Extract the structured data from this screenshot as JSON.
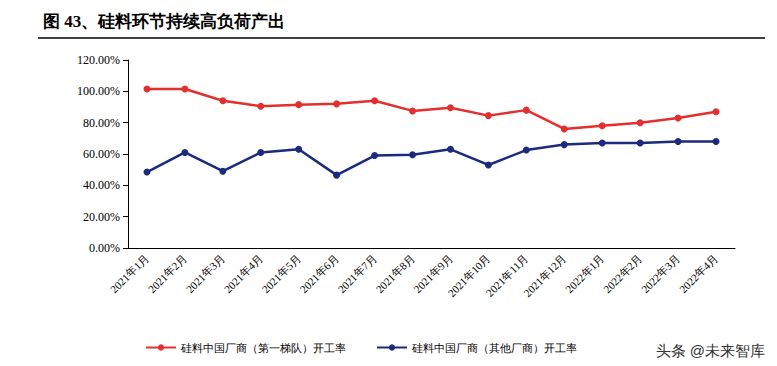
{
  "chart_data": {
    "type": "line",
    "title": "图 43、硅料环节持续高负荷产出",
    "categories": [
      "2021年1月",
      "2021年2月",
      "2021年3月",
      "2021年4月",
      "2021年5月",
      "2021年6月",
      "2021年7月",
      "2021年8月",
      "2021年9月",
      "2021年10月",
      "2021年11月",
      "2021年12月",
      "2022年1月",
      "2022年2月",
      "2022年3月",
      "2022年4月"
    ],
    "series": [
      {
        "name": "硅料中国厂商（第一梯队）开工率",
        "color": "#e3302f",
        "marker": "circle",
        "values": [
          101.5,
          101.5,
          94,
          90.5,
          91.5,
          92,
          94,
          87.5,
          89.5,
          84.5,
          88,
          76,
          78,
          80,
          83,
          87
        ]
      },
      {
        "name": "硅料中国厂商（其他厂商）开工率",
        "color": "#1b2a7e",
        "marker": "circle",
        "values": [
          48.5,
          61,
          49,
          61,
          63,
          46.5,
          59,
          59.5,
          63,
          53,
          62.5,
          66,
          67,
          67,
          68,
          68
        ]
      }
    ],
    "ylim": [
      0,
      120
    ],
    "yticks": [
      {
        "value": 0,
        "label": "0.00%"
      },
      {
        "value": 20,
        "label": "20.00%"
      },
      {
        "value": 40,
        "label": "40.00%"
      },
      {
        "value": 60,
        "label": "60.00%"
      },
      {
        "value": 80,
        "label": "80.00%"
      },
      {
        "value": 100,
        "label": "100.00%"
      },
      {
        "value": 120,
        "label": "120.00%"
      }
    ],
    "grid": false,
    "legend": "bottom",
    "annotations": [
      "头条 @未来智库"
    ]
  }
}
